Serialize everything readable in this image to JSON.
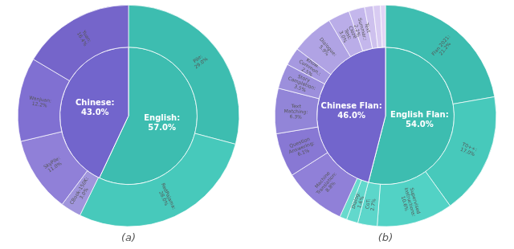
{
  "chart_data": [
    {
      "type": "pie",
      "title": "(a)",
      "data_labels": true,
      "series": [
        {
          "categories": [
            "Pile:",
            "RedPajama:",
            "CBook-150K:",
            "SkyPile:",
            "Wanjuan:",
            "Yuan:"
          ],
          "values": [
            29.0,
            28.0,
            3.0,
            11.0,
            12.2,
            16.4
          ],
          "value_labels": [
            "29.0%",
            "28.0%",
            "3.0%",
            "11.0%",
            "12.2%",
            "16.4%"
          ],
          "colors": [
            "#3dbdb0",
            "#47c9bb",
            "#a095dc",
            "#9080d8",
            "#8070d2",
            "#7565ca"
          ]
        },
        {
          "categories": [
            "English:",
            "Chinese:"
          ],
          "values": [
            57.0,
            43.0
          ],
          "value_labels": [
            "57.0%",
            "43.0%"
          ],
          "colors": [
            "#3dbdb0",
            "#7265cc"
          ]
        }
      ]
    },
    {
      "type": "pie",
      "title": "(b)",
      "data_labels": true,
      "series": [
        {
          "categories": [
            "Flan 2021:",
            "T0++:",
            "Supervised\nInstructions:",
            "CoT:",
            "Dialog:",
            null,
            "Machine\nTranslation:",
            "Question\nAnswering:",
            "Text\nMatching:",
            "Story\nCompletion:",
            "Know.\nCommon.:",
            "Dialogue:",
            "Cloze\nTest:",
            "Text\nSummar.:",
            null,
            null,
            null
          ],
          "values": [
            21.2,
            17.0,
            10.6,
            2.7,
            1.6,
            1.0,
            8.8,
            6.1,
            6.3,
            3.5,
            2.5,
            5.9,
            3.0,
            2.2,
            1.2,
            1.0,
            0.7
          ],
          "value_labels": [
            "21.2%",
            "17.0%",
            "10.6%",
            "2.7%",
            "1.6%",
            null,
            "8.8%",
            "6.1%",
            "6.3%",
            "3.5%",
            "2.5%",
            "5.9%",
            "3.0%",
            "2.2%",
            null,
            null,
            null
          ],
          "colors": [
            "#3dbdb0",
            "#47c9bb",
            "#52d2c5",
            "#5cd6ca",
            "#62d8cc",
            "#68dacd",
            "#9080d8",
            "#8878d4",
            "#9285d8",
            "#9c8fdc",
            "#a699e0",
            "#b0a3e4",
            "#baade8",
            "#c4b7ec",
            "#cec1ee",
            "#d8cbf2",
            "#e2d5f6"
          ]
        },
        {
          "categories": [
            "English Flan:",
            "Chinese Flan:"
          ],
          "values": [
            54.0,
            46.0
          ],
          "value_labels": [
            "54.0%",
            "46.0%"
          ],
          "colors": [
            "#3dbdb0",
            "#7265cc"
          ]
        }
      ]
    }
  ]
}
